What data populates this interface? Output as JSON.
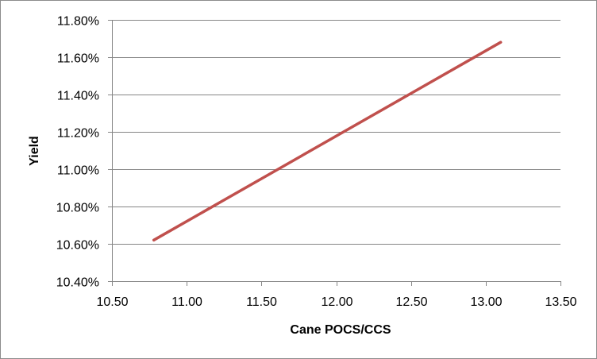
{
  "chart_data": {
    "type": "line",
    "title": "",
    "xlabel": "Cane POCS/CCS",
    "ylabel": "Yield",
    "xlim": [
      10.5,
      13.5
    ],
    "ylim": [
      0.104,
      0.118
    ],
    "x_ticks": [
      "10.50",
      "11.00",
      "11.50",
      "12.00",
      "12.50",
      "13.00",
      "13.50"
    ],
    "y_ticks": [
      "10.40%",
      "10.60%",
      "10.80%",
      "11.00%",
      "11.20%",
      "11.40%",
      "11.60%",
      "11.80%"
    ],
    "grid": "horizontal major gridlines",
    "legend": "none",
    "series": [
      {
        "color": "#c0504d",
        "points": [
          {
            "x": 10.78,
            "y": 0.1062
          },
          {
            "x": 13.1,
            "y": 0.1168
          }
        ]
      }
    ]
  }
}
